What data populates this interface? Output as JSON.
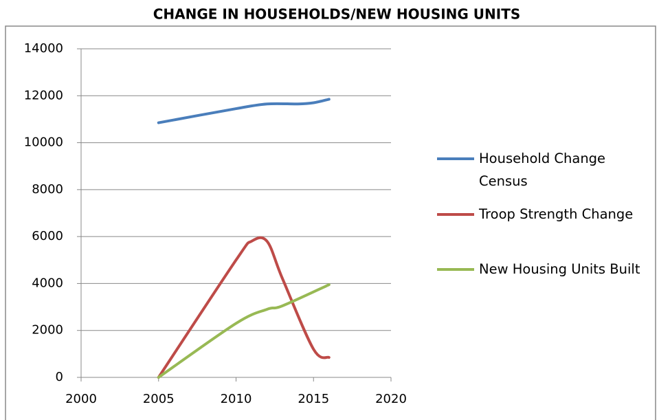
{
  "chart_data": {
    "type": "line",
    "title": "CHANGE IN HOUSEHOLDS/NEW HOUSING UNITS",
    "xlim": [
      2000,
      2020
    ],
    "xticks": [
      2000,
      2005,
      2010,
      2015,
      2020
    ],
    "ylim": [
      0,
      14000
    ],
    "yticks": [
      0,
      2000,
      4000,
      6000,
      8000,
      10000,
      12000,
      14000
    ],
    "grid": true,
    "legend": "right",
    "series": [
      {
        "name": "Household Change Census",
        "color": "#4a7ebb",
        "x": [
          2005,
          2010,
          2012,
          2014,
          2015,
          2016
        ],
        "values": [
          10850,
          11450,
          11650,
          11650,
          11700,
          11850
        ]
      },
      {
        "name": "Troop Strength Change",
        "color": "#be4b48",
        "x": [
          2005,
          2010,
          2011,
          2012,
          2013,
          2015,
          2016
        ],
        "values": [
          0,
          5000,
          5800,
          5800,
          4200,
          1200,
          850
        ]
      },
      {
        "name": "New Housing Units Built",
        "color": "#98b954",
        "x": [
          2005,
          2010,
          2012,
          2013,
          2016
        ],
        "values": [
          0,
          2300,
          2900,
          3050,
          3950
        ]
      }
    ]
  }
}
